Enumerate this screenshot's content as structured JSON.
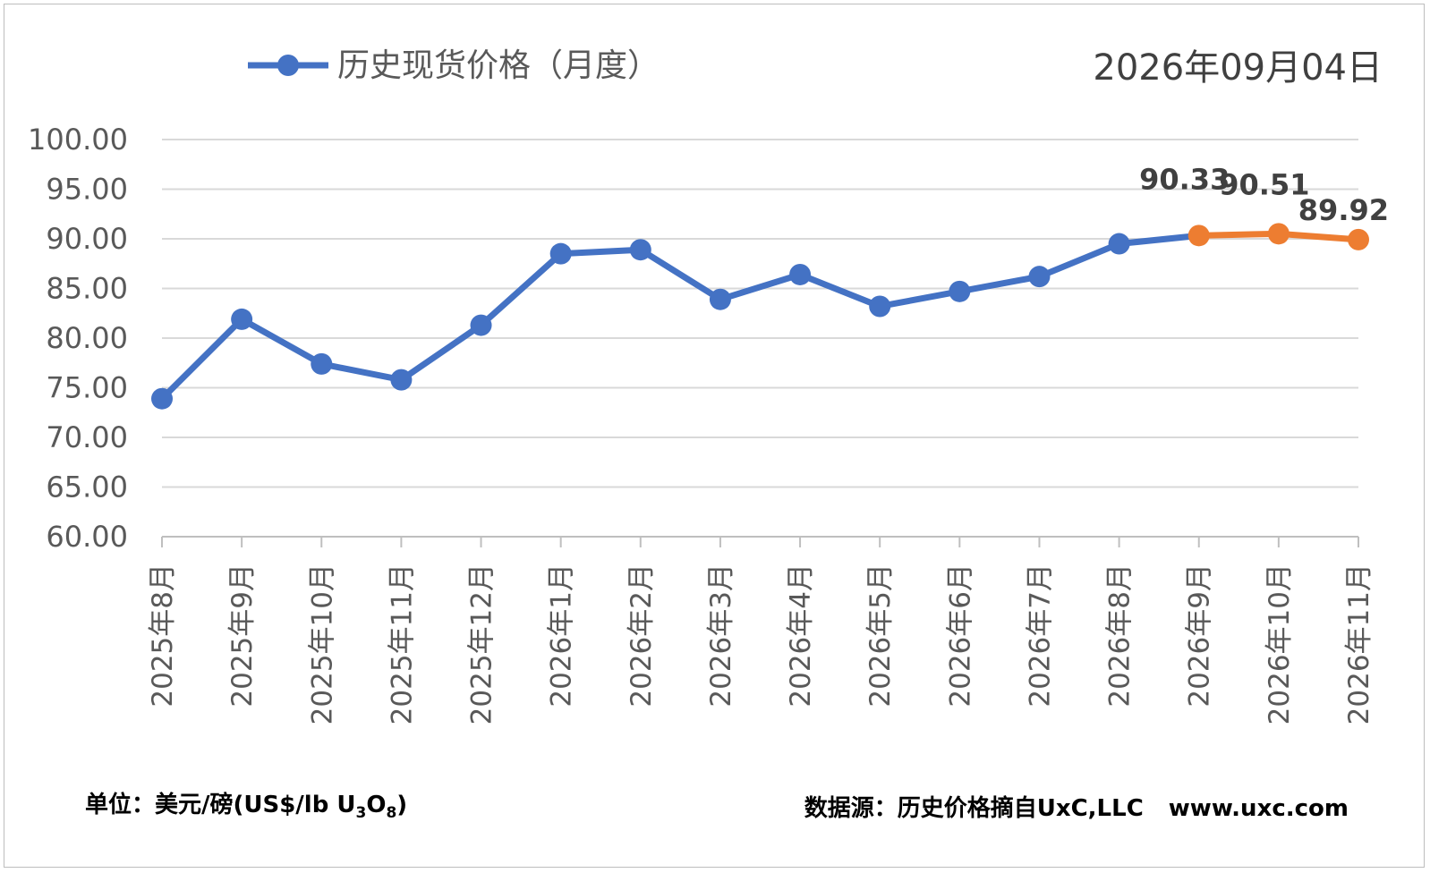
{
  "date_stamp": "2026年09月04日",
  "footer": {
    "unit_prefix": "单位：美元/磅(US$/lb U",
    "unit_sub1": "3",
    "unit_mid": "O",
    "unit_sub2": "8",
    "unit_suffix": ")",
    "source_label": "数据源：历史价格摘自UxC,LLC",
    "source_url": "www.uxc.com"
  },
  "colors": {
    "historical": "#4472C4",
    "recent": "#ED7D31",
    "grid": "#d9d9d9",
    "axis": "#bfbfbf"
  },
  "chart_data": {
    "type": "line",
    "legend": {
      "label": "历史现货价格（月度）",
      "position": "top-left"
    },
    "ylim": [
      60,
      100
    ],
    "yticks": [
      "60.00",
      "65.00",
      "70.00",
      "75.00",
      "80.00",
      "85.00",
      "90.00",
      "95.00",
      "100.00"
    ],
    "grid": true,
    "categories": [
      "2025年8月",
      "2025年9月",
      "2025年10月",
      "2025年11月",
      "2025年12月",
      "2026年1月",
      "2026年2月",
      "2026年3月",
      "2026年4月",
      "2026年5月",
      "2026年6月",
      "2026年7月",
      "2026年8月",
      "2026年9月",
      "2026年10月",
      "2026年11月"
    ],
    "series": [
      {
        "values": [
          73.9,
          81.9,
          77.4,
          75.8,
          81.3,
          88.5,
          88.9,
          83.9,
          86.4,
          83.2,
          84.7,
          86.2,
          89.5,
          90.33,
          90.51,
          89.92
        ]
      }
    ],
    "highlight": {
      "from_index": 13,
      "data_labels": [
        "90.33",
        "90.51",
        "89.92"
      ]
    }
  }
}
